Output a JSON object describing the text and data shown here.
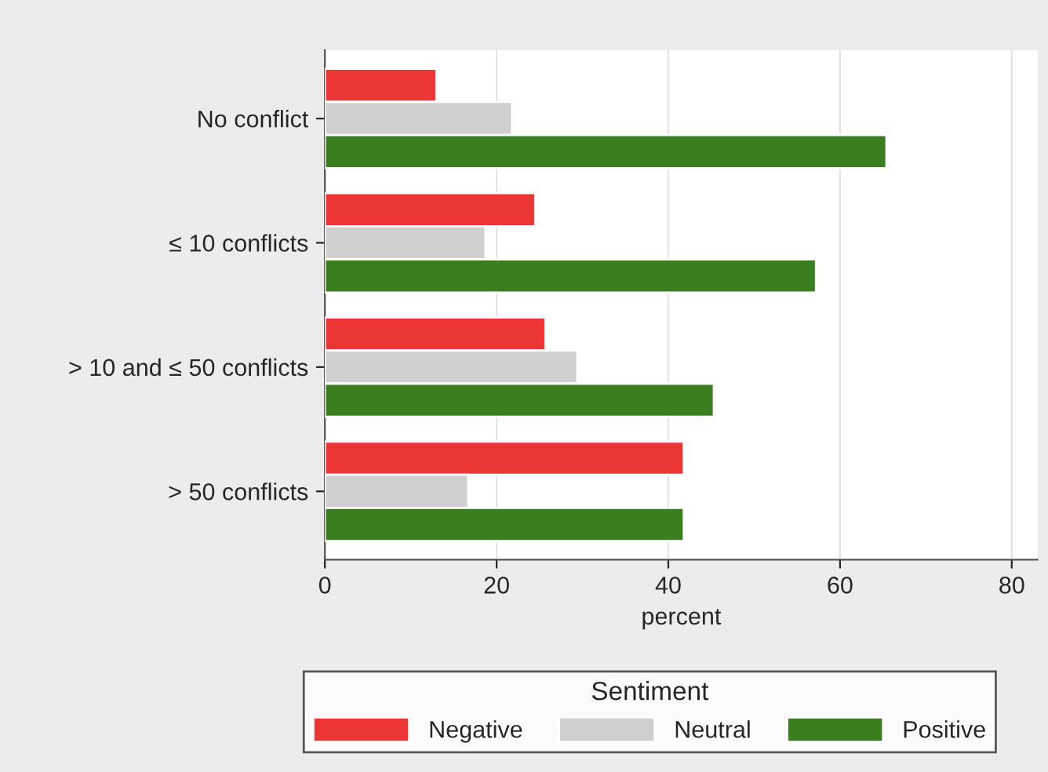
{
  "chart_data": {
    "type": "bar",
    "orientation": "horizontal",
    "xlabel": "percent",
    "legend_title": "Sentiment",
    "legend": "bottom",
    "categories": [
      "No conflict",
      "≤ 10 conflicts",
      "> 10 and ≤ 50 conflicts",
      "> 50 conflicts"
    ],
    "series": [
      {
        "name": "Negative",
        "color": "#ec3535",
        "values": [
          13.0,
          24.5,
          25.7,
          41.8
        ]
      },
      {
        "name": "Neutral",
        "color": "#cfcfcf",
        "values": [
          21.8,
          18.7,
          29.4,
          16.7
        ]
      },
      {
        "name": "Positive",
        "color": "#3a7e1f",
        "values": [
          65.4,
          57.2,
          45.3,
          41.8
        ]
      }
    ],
    "xlim": [
      0,
      83
    ],
    "xticks": [
      0,
      20,
      40,
      60,
      80
    ],
    "grid": "x"
  }
}
